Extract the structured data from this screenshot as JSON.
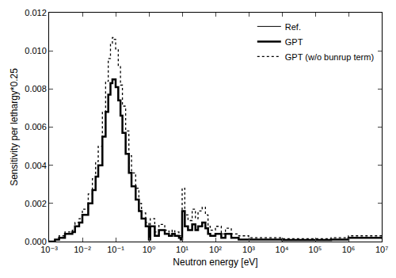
{
  "chart_data": {
    "type": "line",
    "x_label": "Neutron energy [eV]",
    "y_label": "Sensitivity per lethargy*0.25",
    "log": "x",
    "grid": false,
    "legend": "top right",
    "xlim": [
      0.001,
      10000000
    ],
    "xticks": [
      {
        "value": 0.001,
        "label": "10⁻³"
      },
      {
        "value": 0.01,
        "label": "10⁻²"
      },
      {
        "value": 0.1,
        "label": "10⁻¹"
      },
      {
        "value": 1,
        "label": "10⁰"
      },
      {
        "value": 10,
        "label": "10¹"
      },
      {
        "value": 100,
        "label": "10²"
      },
      {
        "value": 1000,
        "label": "10³"
      },
      {
        "value": 10000,
        "label": "10⁴"
      },
      {
        "value": 100000,
        "label": "10⁵"
      },
      {
        "value": 1000000,
        "label": "10⁶"
      },
      {
        "value": 10000000,
        "label": "10⁷"
      }
    ],
    "ylim": [
      0,
      0.012
    ],
    "yticks": [
      {
        "value": 0,
        "label": "0.000"
      },
      {
        "value": 0.002,
        "label": "0.002"
      },
      {
        "value": 0.004,
        "label": "0.004"
      },
      {
        "value": 0.006,
        "label": "0.006"
      },
      {
        "value": 0.008,
        "label": "0.008"
      },
      {
        "value": 0.01,
        "label": "0.010"
      },
      {
        "value": 0.012,
        "label": "0.012"
      }
    ],
    "x": [
      0.001,
      0.0015,
      0.002,
      0.003,
      0.004,
      0.005,
      0.006,
      0.008,
      0.01,
      0.015,
      0.02,
      0.025,
      0.03,
      0.04,
      0.05,
      0.06,
      0.07,
      0.08,
      0.09,
      0.1,
      0.12,
      0.14,
      0.16,
      0.2,
      0.25,
      0.3,
      0.4,
      0.5,
      0.6,
      0.8,
      1.0,
      1.1,
      1.5,
      2,
      3,
      4,
      5,
      6,
      8,
      9,
      10,
      12,
      15,
      20,
      25,
      30,
      40,
      50,
      60,
      70,
      100,
      150,
      200,
      300,
      500,
      1000,
      10000,
      100000,
      300000,
      1000000,
      3000000,
      10000000
    ],
    "series": [
      {
        "name": "Ref.",
        "color": "#000000",
        "line_style": "solid",
        "values": [
          0,
          0.0001,
          0.0002,
          0.0004,
          0.0004,
          0.0005,
          0.0008,
          0.001,
          0.0014,
          0.002,
          0.0027,
          0.0034,
          0.004,
          0.0055,
          0.0068,
          0.0077,
          0.0083,
          0.0085,
          0.0085,
          0.0081,
          0.0074,
          0.0066,
          0.0057,
          0.0046,
          0.0036,
          0.0029,
          0.0022,
          0.0016,
          0.0012,
          0.0008,
          0.0001,
          0.0008,
          0.0003,
          0.0006,
          0.0004,
          0.0003,
          0.0004,
          0.0003,
          0.0002,
          0.0001,
          0.0016,
          0.0008,
          0.0006,
          0.0009,
          0.0006,
          0.0008,
          0.001,
          0.0007,
          0.0004,
          0.0003,
          0.0004,
          0.0002,
          0.0004,
          0.0002,
          0.0001,
          0.0001,
          8e-05,
          8e-05,
          0.0001,
          0.0002,
          0.0002,
          0.0002
        ]
      },
      {
        "name": "GPT",
        "color": "#000000",
        "line_style": "solid",
        "values": [
          0,
          0.0001,
          0.0002,
          0.0004,
          0.0004,
          0.0005,
          0.0008,
          0.001,
          0.0014,
          0.002,
          0.0027,
          0.0034,
          0.004,
          0.0055,
          0.0068,
          0.0077,
          0.0083,
          0.0085,
          0.0085,
          0.0081,
          0.0074,
          0.0066,
          0.0057,
          0.0046,
          0.0036,
          0.0029,
          0.0022,
          0.0016,
          0.0012,
          0.0008,
          0.0001,
          0.0008,
          0.0003,
          0.0006,
          0.0004,
          0.0003,
          0.0004,
          0.0003,
          0.0002,
          0.0001,
          0.0016,
          0.0008,
          0.0006,
          0.0009,
          0.0006,
          0.0008,
          0.001,
          0.0007,
          0.0004,
          0.0003,
          0.0004,
          0.0002,
          0.0004,
          0.0002,
          0.0001,
          0.0001,
          8e-05,
          8e-05,
          0.0001,
          0.0002,
          0.0002,
          0.0002
        ]
      },
      {
        "name": "GPT (w/o bunrup term)",
        "color": "#000000",
        "line_style": "dotted",
        "values": [
          0,
          0.0001,
          0.0003,
          0.0005,
          0.0005,
          0.0006,
          0.001,
          0.0012,
          0.0017,
          0.0025,
          0.0033,
          0.0042,
          0.005,
          0.0068,
          0.0084,
          0.0096,
          0.0104,
          0.0107,
          0.0106,
          0.0101,
          0.0092,
          0.0082,
          0.0071,
          0.0058,
          0.0045,
          0.0036,
          0.0028,
          0.002,
          0.0015,
          0.001,
          0.0002,
          0.0012,
          0.0005,
          0.0009,
          0.0006,
          0.0005,
          0.0006,
          0.0005,
          0.0003,
          0.0002,
          0.0028,
          0.0014,
          0.0011,
          0.0017,
          0.0012,
          0.0016,
          0.0018,
          0.0014,
          0.0008,
          0.0006,
          0.0008,
          0.0004,
          0.0007,
          0.0004,
          0.0003,
          0.0002,
          0.00015,
          0.00015,
          0.0002,
          0.0003,
          0.0003,
          0.0003
        ]
      }
    ]
  }
}
